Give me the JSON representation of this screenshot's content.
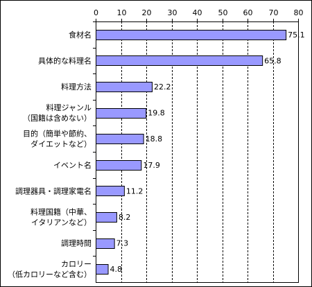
{
  "chart_data": {
    "type": "bar",
    "orientation": "horizontal",
    "categories": [
      [
        "食材名"
      ],
      [
        "具体的な料理名"
      ],
      [
        "料理方法"
      ],
      [
        "料理ジャンル",
        "（国籍は含めない）"
      ],
      [
        "目的（簡単や節約、",
        "ダイエットなど）"
      ],
      [
        "イベント名"
      ],
      [
        "調理器具・調理家電名"
      ],
      [
        "料理国籍（中華、",
        "イタリアンなど）"
      ],
      [
        "調理時間"
      ],
      [
        "カロリー",
        "（低カロリーなど含む）"
      ]
    ],
    "values": [
      75.1,
      65.8,
      22.2,
      19.8,
      18.8,
      17.9,
      11.2,
      8.2,
      7.3,
      4.8
    ],
    "value_labels": [
      "75.1",
      "65.8",
      "22.2",
      "19.8",
      "18.8",
      "17.9",
      "11.2",
      "8.2",
      "7.3",
      "4.8"
    ],
    "xlim": [
      0,
      80
    ],
    "x_ticks": [
      "0",
      "10",
      "20",
      "30",
      "40",
      "50",
      "60",
      "70",
      "80"
    ],
    "x_axis_position": "top",
    "grid": "vertical dashed",
    "title": "",
    "xlabel": "",
    "ylabel": "",
    "colors": {
      "bar_fill": "#9999ff",
      "bar_stroke": "#000000",
      "grid": "#000000"
    }
  }
}
